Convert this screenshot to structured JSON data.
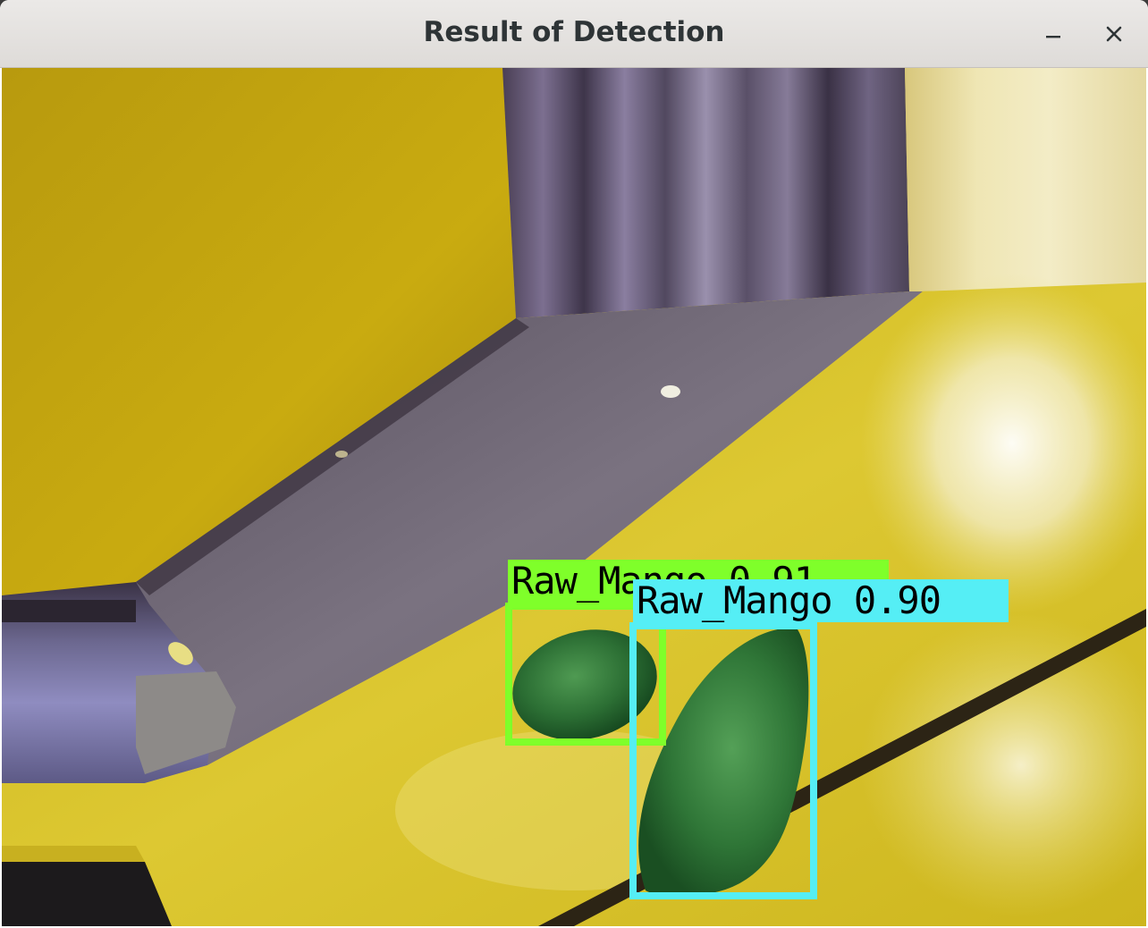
{
  "window": {
    "title": "Result of Detection",
    "controls": {
      "minimize_icon": "minimize-icon",
      "close_icon": "close-icon"
    }
  },
  "image": {
    "description_icon": "detection-result-image",
    "detections": [
      {
        "label": "Raw_Mango 0.91",
        "class": "Raw_Mango",
        "confidence": 0.91,
        "color": "#7fff2a"
      },
      {
        "label": "Raw_Mango 0.90",
        "class": "Raw_Mango",
        "confidence": 0.9,
        "color": "#55eef5"
      }
    ]
  },
  "colors": {
    "titlebar": "#e5e2df",
    "title_text": "#2e3436",
    "yellow_surface": "#d9c21a",
    "gravel": "#6e6672",
    "mango_green": "#2f7a34"
  }
}
